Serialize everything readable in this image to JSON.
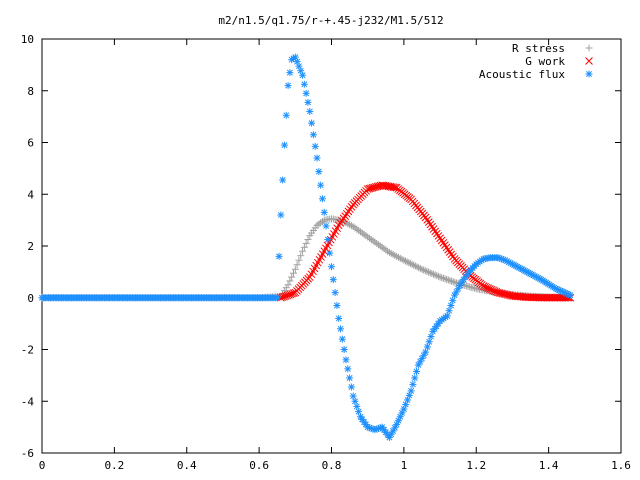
{
  "chart_data": {
    "type": "scatter",
    "title": "m2/n1.5/q1.75/r-+.45-j232/M1.5/512",
    "xlabel": "",
    "ylabel": "",
    "xlim": [
      0,
      1.6
    ],
    "ylim": [
      -6,
      10
    ],
    "xticks": [
      "0",
      "0.2",
      "0.4",
      "0.6",
      "0.8",
      "1",
      "1.2",
      "1.4",
      "1.6"
    ],
    "yticks": [
      "-6",
      "-4",
      "-2",
      "0",
      "2",
      "4",
      "6",
      "8",
      "10"
    ],
    "grid": false,
    "legend_position": "top-right",
    "series": [
      {
        "name": "R stress",
        "marker": "plus",
        "color": "#a0a0a0",
        "x": [
          0.0,
          0.2,
          0.4,
          0.6,
          0.66,
          0.68,
          0.7,
          0.72,
          0.74,
          0.76,
          0.78,
          0.8,
          0.82,
          0.84,
          0.86,
          0.88,
          0.9,
          0.92,
          0.94,
          0.96,
          0.98,
          1.0,
          1.05,
          1.1,
          1.15,
          1.2,
          1.25,
          1.3,
          1.35,
          1.4,
          1.45
        ],
        "y": [
          0.0,
          0.0,
          0.0,
          0.0,
          0.05,
          0.5,
          1.1,
          1.8,
          2.4,
          2.8,
          3.0,
          3.05,
          3.0,
          2.9,
          2.75,
          2.55,
          2.35,
          2.15,
          1.95,
          1.75,
          1.6,
          1.45,
          1.1,
          0.8,
          0.55,
          0.35,
          0.22,
          0.12,
          0.06,
          0.03,
          0.02
        ]
      },
      {
        "name": "G work",
        "marker": "cross",
        "color": "#ff0000",
        "x": [
          0.66,
          0.7,
          0.74,
          0.78,
          0.82,
          0.86,
          0.9,
          0.94,
          0.98,
          1.02,
          1.06,
          1.1,
          1.14,
          1.18,
          1.22,
          1.26,
          1.3,
          1.34,
          1.38,
          1.42,
          1.46
        ],
        "y": [
          0.0,
          0.2,
          0.8,
          1.8,
          2.8,
          3.6,
          4.2,
          4.35,
          4.25,
          3.8,
          3.1,
          2.3,
          1.5,
          0.9,
          0.45,
          0.2,
          0.07,
          0.02,
          0.0,
          0.0,
          0.0
        ]
      },
      {
        "name": "Acoustic flux",
        "marker": "asterisk",
        "color": "#1e90ff",
        "x": [
          0.0,
          0.2,
          0.4,
          0.6,
          0.65,
          0.66,
          0.67,
          0.68,
          0.69,
          0.7,
          0.72,
          0.74,
          0.76,
          0.78,
          0.8,
          0.82,
          0.84,
          0.86,
          0.88,
          0.9,
          0.92,
          0.94,
          0.96,
          0.98,
          1.0,
          1.02,
          1.04,
          1.06,
          1.08,
          1.1,
          1.12,
          1.14,
          1.16,
          1.18,
          1.2,
          1.22,
          1.24,
          1.26,
          1.28,
          1.3,
          1.34,
          1.38,
          1.42,
          1.46
        ],
        "y": [
          0.0,
          0.0,
          0.0,
          0.0,
          0.0,
          3.2,
          5.9,
          8.2,
          9.2,
          9.3,
          8.6,
          7.2,
          5.4,
          3.3,
          1.2,
          -0.8,
          -2.4,
          -3.8,
          -4.6,
          -5.0,
          -5.1,
          -5.0,
          -5.4,
          -4.9,
          -4.3,
          -3.6,
          -2.6,
          -2.1,
          -1.3,
          -0.9,
          -0.7,
          0.1,
          0.6,
          1.0,
          1.3,
          1.5,
          1.55,
          1.55,
          1.45,
          1.3,
          1.0,
          0.7,
          0.35,
          0.1
        ]
      }
    ]
  }
}
